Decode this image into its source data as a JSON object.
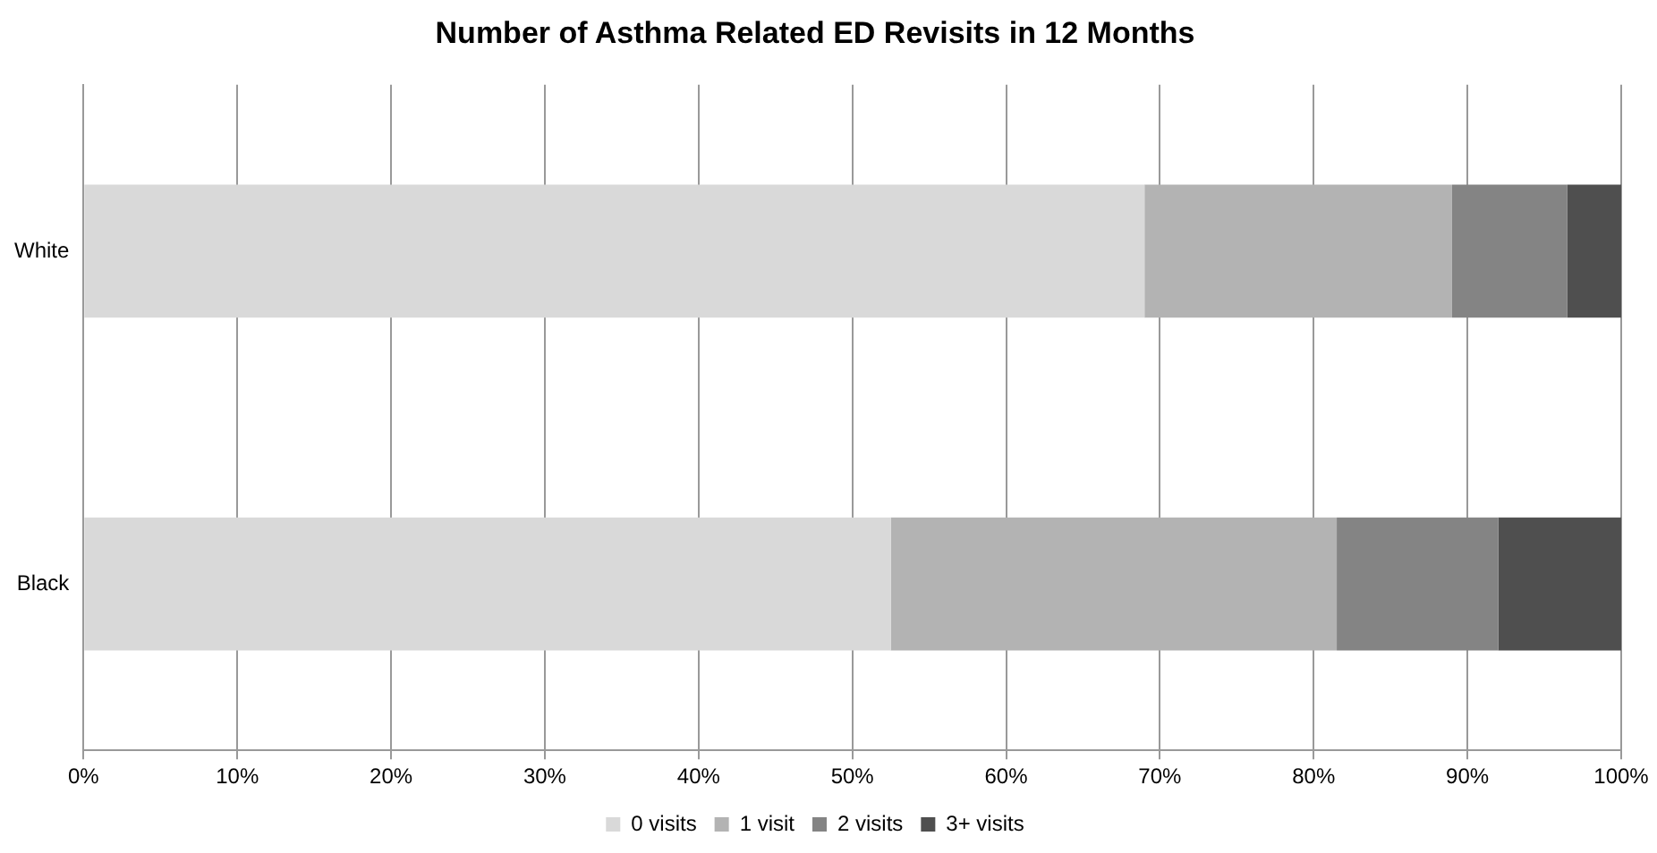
{
  "chart_data": {
    "type": "bar",
    "title": "Number of Asthma Related ED Revisits in 12 Months",
    "orientation": "horizontal",
    "stacked": true,
    "categories": [
      "White",
      "Black"
    ],
    "series": [
      {
        "name": "0 visits",
        "color": "#d9d9d9",
        "values": [
          69,
          52.5
        ]
      },
      {
        "name": "1 visit",
        "color": "#b3b3b3",
        "values": [
          20,
          29
        ]
      },
      {
        "name": "2 visits",
        "color": "#848484",
        "values": [
          7.5,
          10.5
        ]
      },
      {
        "name": "3+ visits",
        "color": "#4f4f4f",
        "values": [
          3.5,
          8
        ]
      }
    ],
    "xlim": [
      0,
      100
    ],
    "xticks": [
      {
        "value": 0,
        "label": "0%"
      },
      {
        "value": 10,
        "label": "10%"
      },
      {
        "value": 20,
        "label": "20%"
      },
      {
        "value": 30,
        "label": "30%"
      },
      {
        "value": 40,
        "label": "40%"
      },
      {
        "value": 50,
        "label": "50%"
      },
      {
        "value": 60,
        "label": "60%"
      },
      {
        "value": 70,
        "label": "70%"
      },
      {
        "value": 80,
        "label": "80%"
      },
      {
        "value": 90,
        "label": "90%"
      },
      {
        "value": 100,
        "label": "100%"
      }
    ],
    "grid": "x",
    "legend": "bottom"
  }
}
